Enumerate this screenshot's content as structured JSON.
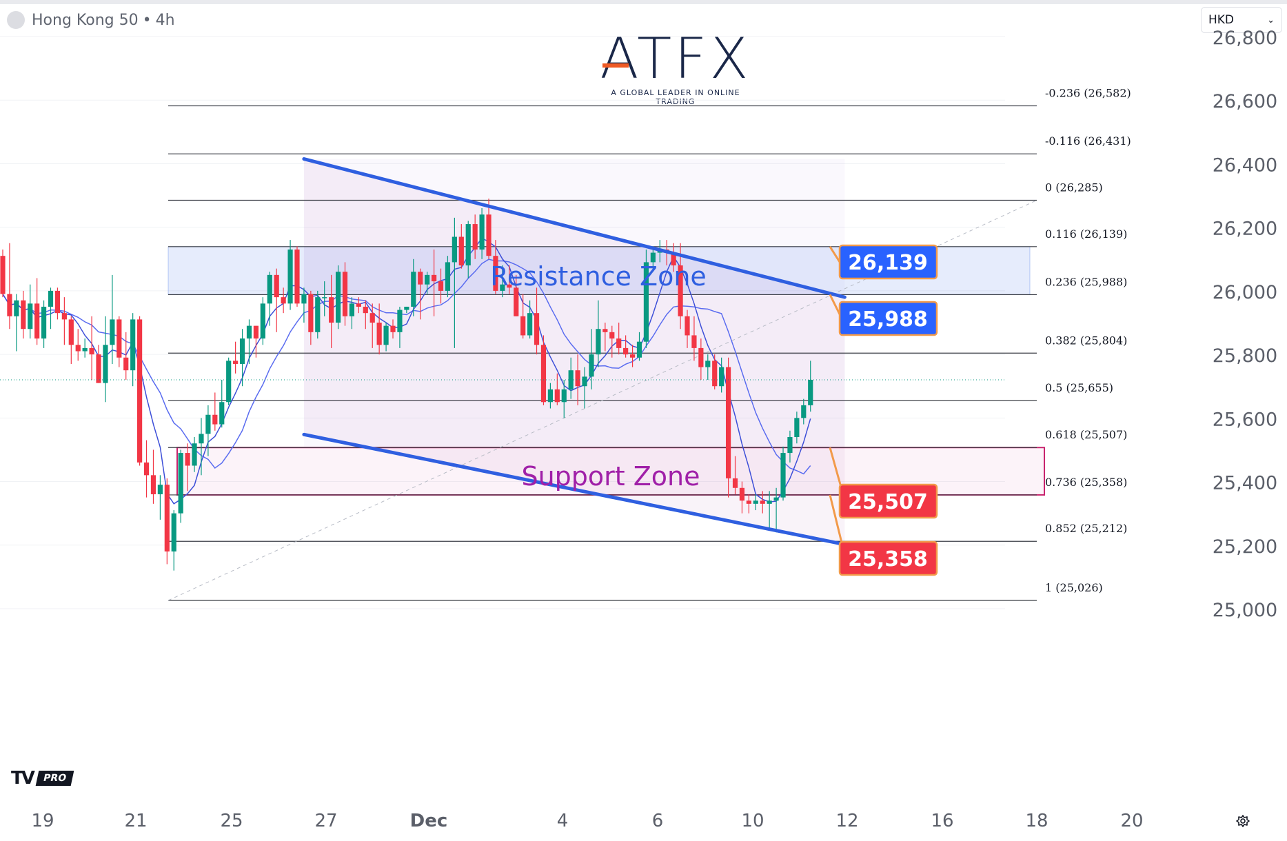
{
  "header": {
    "symbol": "Hong Kong 50",
    "separator": "•",
    "timeframe": "4h",
    "currency": "HKD",
    "currency_chevron": "⌄"
  },
  "logo": {
    "brand": "ATFX",
    "tagline": "A GLOBAL LEADER IN ONLINE TRADING"
  },
  "branding": {
    "mark": "TV",
    "badge": "PRO"
  },
  "icons": {
    "settings": "settings-icon",
    "symbol_logo": "symbol-logo-icon"
  },
  "chart_data": {
    "type": "candlestick",
    "y_axis": {
      "ticks": [
        25000,
        25200,
        25400,
        25600,
        25800,
        26000,
        26200,
        26400,
        26600,
        26800
      ],
      "tick_labels": [
        "25,000",
        "25,200",
        "25,400",
        "25,600",
        "25,800",
        "26,000",
        "26,200",
        "26,400",
        "26,600",
        "26,800"
      ],
      "range": [
        24940,
        26800
      ]
    },
    "x_axis": {
      "labels": [
        "19",
        "21",
        "25",
        "27",
        "Dec",
        "4",
        "6",
        "10",
        "12",
        "16",
        "18",
        "20"
      ]
    },
    "fibonacci": [
      {
        "level": "-0.236",
        "price": 26582,
        "label": "-0.236 (26,582)"
      },
      {
        "level": "-0.116",
        "price": 26431,
        "label": "-0.116 (26,431)"
      },
      {
        "level": "0",
        "price": 26285,
        "label": "0 (26,285)"
      },
      {
        "level": "0.116",
        "price": 26139,
        "label": "0.116 (26,139)"
      },
      {
        "level": "0.236",
        "price": 25988,
        "label": "0.236 (25,988)"
      },
      {
        "level": "0.382",
        "price": 25804,
        "label": "0.382 (25,804)"
      },
      {
        "level": "0.5",
        "price": 25655,
        "label": "0.5 (25,655)"
      },
      {
        "level": "0.618",
        "price": 25507,
        "label": "0.618 (25,507)"
      },
      {
        "level": "0.736",
        "price": 25358,
        "label": "0.736 (25,358)"
      },
      {
        "level": "0.852",
        "price": 25212,
        "label": "0.852 (25,212)"
      },
      {
        "level": "1",
        "price": 25026,
        "label": "1 (25,026)"
      }
    ],
    "zones": [
      {
        "name": "Resistance Zone",
        "from": 25988,
        "to": 26139,
        "color": "#2f5fe0"
      },
      {
        "name": "Support Zone",
        "from": 25358,
        "to": 25507,
        "color": "#a020a8"
      }
    ],
    "price_callouts": [
      {
        "label": "26,139",
        "price": 26139,
        "color": "#2962ff"
      },
      {
        "label": "25,988",
        "price": 25988,
        "color": "#2962ff"
      },
      {
        "label": "25,507",
        "price": 25507,
        "color": "#f23645"
      },
      {
        "label": "25,358",
        "price": 25358,
        "color": "#f23645"
      }
    ],
    "channel": {
      "upper": [
        {
          "bar": 44,
          "price": 26415
        },
        {
          "bar": 123,
          "price": 25980
        }
      ],
      "lower": [
        {
          "bar": 44,
          "price": 25548
        },
        {
          "bar": 123,
          "price": 25202
        }
      ]
    },
    "colors": {
      "up": "#089981",
      "down": "#f23645",
      "ma_fast": "#3d4fd8",
      "ma_slow": "#5a6cf0",
      "channel": "#2f5fe0"
    },
    "candles": [
      [
        26110,
        26130,
        25980,
        25990
      ],
      [
        25990,
        26150,
        25880,
        25920
      ],
      [
        25920,
        25990,
        25810,
        25970
      ],
      [
        25970,
        26000,
        25850,
        25880
      ],
      [
        25880,
        26020,
        25850,
        25960
      ],
      [
        25960,
        26040,
        25830,
        25850
      ],
      [
        25850,
        25970,
        25820,
        25950
      ],
      [
        25950,
        26010,
        25880,
        26000
      ],
      [
        26000,
        26010,
        25910,
        25930
      ],
      [
        25930,
        25980,
        25830,
        25910
      ],
      [
        25910,
        25920,
        25770,
        25830
      ],
      [
        25830,
        25880,
        25780,
        25810
      ],
      [
        25810,
        25850,
        25790,
        25820
      ],
      [
        25820,
        25920,
        25720,
        25800
      ],
      [
        25800,
        25830,
        25710,
        25710
      ],
      [
        25710,
        25920,
        25650,
        25830
      ],
      [
        25830,
        26050,
        25770,
        25910
      ],
      [
        25910,
        25920,
        25760,
        25790
      ],
      [
        25790,
        25870,
        25720,
        25750
      ],
      [
        25750,
        25930,
        25700,
        25910
      ],
      [
        25910,
        25920,
        25450,
        25460
      ],
      [
        25460,
        25530,
        25350,
        25420
      ],
      [
        25420,
        25500,
        25330,
        25360
      ],
      [
        25360,
        25420,
        25280,
        25390
      ],
      [
        25390,
        25410,
        25140,
        25180
      ],
      [
        25180,
        25310,
        25120,
        25300
      ],
      [
        25300,
        25500,
        25270,
        25490
      ],
      [
        25490,
        25520,
        25370,
        25450
      ],
      [
        25450,
        25540,
        25430,
        25520
      ],
      [
        25520,
        25600,
        25420,
        25550
      ],
      [
        25550,
        25640,
        25480,
        25610
      ],
      [
        25610,
        25680,
        25560,
        25580
      ],
      [
        25580,
        25720,
        25570,
        25650
      ],
      [
        25650,
        25790,
        25640,
        25780
      ],
      [
        25780,
        25840,
        25740,
        25770
      ],
      [
        25770,
        25880,
        25700,
        25850
      ],
      [
        25850,
        25910,
        25770,
        25890
      ],
      [
        25890,
        25890,
        25790,
        25850
      ],
      [
        25850,
        25980,
        25830,
        25960
      ],
      [
        25960,
        26060,
        25890,
        26050
      ],
      [
        26050,
        26070,
        25870,
        25980
      ],
      [
        25980,
        26010,
        25930,
        25960
      ],
      [
        25960,
        26160,
        25940,
        26130
      ],
      [
        26130,
        26140,
        25950,
        25960
      ],
      [
        25960,
        26010,
        25900,
        25990
      ],
      [
        25990,
        26000,
        25830,
        25870
      ],
      [
        25870,
        26000,
        25850,
        25980
      ],
      [
        25980,
        26030,
        25920,
        25980
      ],
      [
        25980,
        26050,
        25820,
        25900
      ],
      [
        25900,
        26080,
        25880,
        26060
      ],
      [
        26060,
        26090,
        25890,
        25920
      ],
      [
        25920,
        25980,
        25880,
        25960
      ],
      [
        25960,
        25980,
        25930,
        25950
      ],
      [
        25950,
        25970,
        25880,
        25930
      ],
      [
        25930,
        25960,
        25820,
        25900
      ],
      [
        25900,
        25960,
        25800,
        25830
      ],
      [
        25830,
        25900,
        25810,
        25890
      ],
      [
        25890,
        25910,
        25850,
        25870
      ],
      [
        25870,
        25950,
        25820,
        25940
      ],
      [
        25940,
        25950,
        25930,
        25950
      ],
      [
        25950,
        26100,
        25920,
        26060
      ],
      [
        26060,
        26070,
        25910,
        26020
      ],
      [
        26020,
        26060,
        25990,
        26050
      ],
      [
        26050,
        26130,
        25920,
        26030
      ],
      [
        26030,
        26070,
        25960,
        26000
      ],
      [
        26000,
        26110,
        25980,
        26090
      ],
      [
        26090,
        26230,
        25820,
        26170
      ],
      [
        26170,
        26210,
        26070,
        26080
      ],
      [
        26080,
        26220,
        26040,
        26210
      ],
      [
        26210,
        26240,
        26100,
        26130
      ],
      [
        26130,
        26260,
        26100,
        26240
      ],
      [
        26240,
        26290,
        26100,
        26110
      ],
      [
        26110,
        26160,
        25990,
        26000
      ],
      [
        26000,
        26080,
        25980,
        26020
      ],
      [
        26020,
        26080,
        25990,
        26010
      ],
      [
        26010,
        26050,
        25920,
        25920
      ],
      [
        25920,
        25990,
        25850,
        25860
      ],
      [
        25860,
        25970,
        25850,
        25930
      ],
      [
        25930,
        26010,
        25800,
        25830
      ],
      [
        25830,
        25860,
        25640,
        25650
      ],
      [
        25650,
        25710,
        25630,
        25690
      ],
      [
        25690,
        25740,
        25640,
        25650
      ],
      [
        25650,
        25720,
        25600,
        25690
      ],
      [
        25690,
        25790,
        25660,
        25750
      ],
      [
        25750,
        25800,
        25640,
        25700
      ],
      [
        25700,
        25760,
        25630,
        25730
      ],
      [
        25730,
        25880,
        25690,
        25800
      ],
      [
        25800,
        25970,
        25760,
        25880
      ],
      [
        25880,
        25900,
        25810,
        25870
      ],
      [
        25870,
        25890,
        25790,
        25850
      ],
      [
        25850,
        25900,
        25800,
        25820
      ],
      [
        25820,
        25860,
        25790,
        25800
      ],
      [
        25800,
        25830,
        25760,
        25790
      ],
      [
        25790,
        25870,
        25780,
        25840
      ],
      [
        25840,
        26130,
        25820,
        26090
      ],
      [
        26090,
        26140,
        26060,
        26120
      ],
      [
        26120,
        26160,
        26090,
        26130
      ],
      [
        26130,
        26160,
        26080,
        26120
      ],
      [
        26120,
        26150,
        26060,
        26080
      ],
      [
        26080,
        26150,
        25880,
        25920
      ],
      [
        25920,
        25940,
        25820,
        25860
      ],
      [
        25860,
        25920,
        25780,
        25820
      ],
      [
        25820,
        25850,
        25720,
        25760
      ],
      [
        25760,
        25800,
        25720,
        25780
      ],
      [
        25780,
        25800,
        25690,
        25700
      ],
      [
        25700,
        25790,
        25680,
        25760
      ],
      [
        25760,
        25790,
        25350,
        25410
      ],
      [
        25410,
        25480,
        25360,
        25380
      ],
      [
        25380,
        25400,
        25300,
        25340
      ],
      [
        25340,
        25360,
        25300,
        25330
      ],
      [
        25330,
        25360,
        25310,
        25340
      ],
      [
        25340,
        25370,
        25300,
        25330
      ],
      [
        25330,
        25370,
        25250,
        25340
      ],
      [
        25340,
        25380,
        25240,
        25350
      ],
      [
        25350,
        25510,
        25340,
        25490
      ],
      [
        25490,
        25560,
        25460,
        25540
      ],
      [
        25540,
        25620,
        25520,
        25600
      ],
      [
        25600,
        25660,
        25580,
        25640
      ],
      [
        25640,
        25780,
        25620,
        25720
      ]
    ],
    "last_price": 25720
  }
}
